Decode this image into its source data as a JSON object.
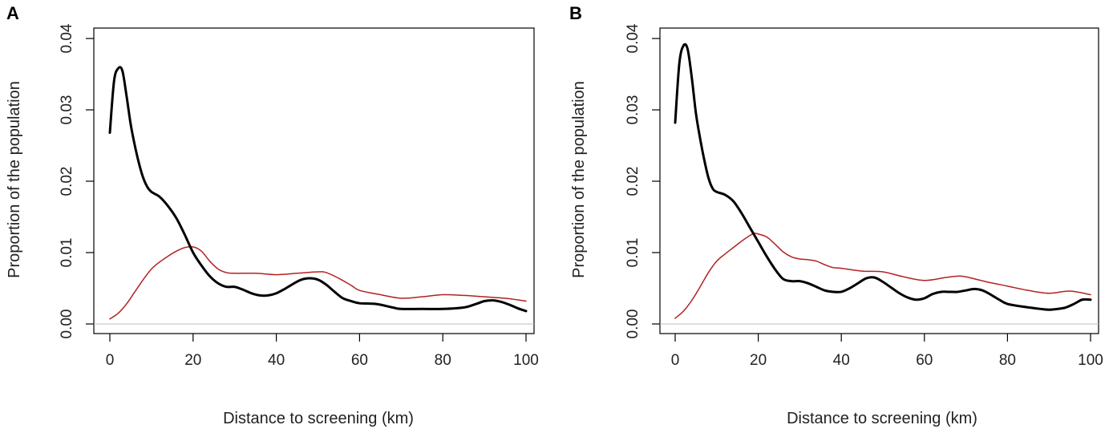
{
  "figure": {
    "panels": [
      "A",
      "B"
    ]
  },
  "chart_data": [
    {
      "type": "line",
      "panel_label": "A",
      "xlabel": "Distance to screening (km)",
      "ylabel": "Proportion of the population",
      "xlim": [
        0,
        100
      ],
      "ylim": [
        0,
        0.04
      ],
      "xticks": [
        "0",
        "20",
        "40",
        "60",
        "80",
        "100"
      ],
      "yticks": [
        "0.00",
        "0.01",
        "0.02",
        "0.03",
        "0.04"
      ],
      "baseline_y": 0,
      "series": [
        {
          "name": "black density",
          "color": "#000000",
          "x": [
            0,
            1,
            2,
            3,
            4,
            5,
            6,
            7,
            8,
            9,
            10,
            12,
            14,
            16,
            18,
            20,
            22,
            24,
            26,
            28,
            30,
            32,
            34,
            36,
            38,
            40,
            42,
            44,
            46,
            48,
            50,
            52,
            54,
            56,
            58,
            60,
            64,
            68,
            70,
            75,
            80,
            85,
            88,
            90,
            92,
            94,
            96,
            98,
            100
          ],
          "values": [
            0.0268,
            0.034,
            0.0358,
            0.0355,
            0.032,
            0.028,
            0.025,
            0.0225,
            0.0205,
            0.0192,
            0.0185,
            0.0178,
            0.0165,
            0.0148,
            0.0125,
            0.01,
            0.0082,
            0.0067,
            0.0057,
            0.0052,
            0.0052,
            0.0048,
            0.0043,
            0.004,
            0.004,
            0.0043,
            0.0049,
            0.0056,
            0.0062,
            0.0064,
            0.0062,
            0.0055,
            0.0045,
            0.0036,
            0.0032,
            0.0029,
            0.0028,
            0.0023,
            0.0021,
            0.0021,
            0.0021,
            0.0023,
            0.0028,
            0.0032,
            0.0033,
            0.0031,
            0.0027,
            0.0022,
            0.0018
          ]
        },
        {
          "name": "red density",
          "color": "#b22222",
          "x": [
            0,
            2,
            4,
            6,
            8,
            10,
            12,
            14,
            16,
            18,
            20,
            22,
            24,
            26,
            28,
            30,
            35,
            40,
            45,
            50,
            52,
            55,
            58,
            60,
            65,
            70,
            75,
            80,
            85,
            90,
            95,
            100
          ],
          "values": [
            0.0007,
            0.0015,
            0.0028,
            0.0045,
            0.0062,
            0.0077,
            0.0087,
            0.0095,
            0.0102,
            0.0107,
            0.0108,
            0.0102,
            0.0088,
            0.0077,
            0.0072,
            0.0071,
            0.0071,
            0.0069,
            0.0071,
            0.0073,
            0.0072,
            0.0064,
            0.0054,
            0.0047,
            0.0041,
            0.0036,
            0.0038,
            0.0041,
            0.004,
            0.0038,
            0.0036,
            0.0032
          ]
        }
      ]
    },
    {
      "type": "line",
      "panel_label": "B",
      "xlabel": "Distance to screening (km)",
      "ylabel": "Proportion of the population",
      "xlim": [
        0,
        100
      ],
      "ylim": [
        0,
        0.04
      ],
      "xticks": [
        "0",
        "20",
        "40",
        "60",
        "80",
        "100"
      ],
      "yticks": [
        "0.00",
        "0.01",
        "0.02",
        "0.03",
        "0.04"
      ],
      "baseline_y": 0,
      "series": [
        {
          "name": "black density",
          "color": "#000000",
          "x": [
            0,
            1,
            2,
            3,
            4,
            5,
            6,
            7,
            8,
            9,
            10,
            12,
            14,
            16,
            18,
            20,
            22,
            24,
            26,
            28,
            30,
            32,
            34,
            36,
            38,
            40,
            42,
            44,
            46,
            48,
            50,
            52,
            54,
            56,
            58,
            60,
            62,
            64,
            66,
            68,
            70,
            72,
            74,
            76,
            78,
            80,
            84,
            88,
            90,
            92,
            94,
            96,
            98,
            100
          ],
          "values": [
            0.0282,
            0.0365,
            0.039,
            0.0385,
            0.0345,
            0.0295,
            0.026,
            0.023,
            0.0205,
            0.019,
            0.0185,
            0.0181,
            0.0172,
            0.0155,
            0.0135,
            0.0115,
            0.0095,
            0.0077,
            0.0063,
            0.006,
            0.006,
            0.0057,
            0.0052,
            0.0047,
            0.0045,
            0.0045,
            0.005,
            0.0057,
            0.0064,
            0.0065,
            0.0059,
            0.0051,
            0.0043,
            0.0037,
            0.0034,
            0.0036,
            0.0042,
            0.0045,
            0.0045,
            0.0045,
            0.0047,
            0.0049,
            0.0047,
            0.0041,
            0.0034,
            0.0028,
            0.0024,
            0.0021,
            0.002,
            0.0021,
            0.0023,
            0.0028,
            0.0034,
            0.0034
          ]
        },
        {
          "name": "red density",
          "color": "#b22222",
          "x": [
            0,
            2,
            4,
            6,
            8,
            10,
            12,
            14,
            16,
            18,
            19,
            20,
            22,
            24,
            26,
            28,
            30,
            32,
            34,
            36,
            38,
            40,
            45,
            50,
            55,
            60,
            65,
            68,
            70,
            75,
            80,
            85,
            90,
            95,
            100
          ],
          "values": [
            0.0008,
            0.0018,
            0.0033,
            0.0052,
            0.0072,
            0.0088,
            0.0098,
            0.0107,
            0.0116,
            0.0124,
            0.0127,
            0.0126,
            0.0122,
            0.0112,
            0.0101,
            0.0094,
            0.0091,
            0.009,
            0.0088,
            0.0083,
            0.0079,
            0.0078,
            0.0074,
            0.0073,
            0.0066,
            0.0061,
            0.0065,
            0.0067,
            0.0066,
            0.0059,
            0.0053,
            0.0047,
            0.0043,
            0.0046,
            0.0041
          ]
        }
      ]
    }
  ]
}
